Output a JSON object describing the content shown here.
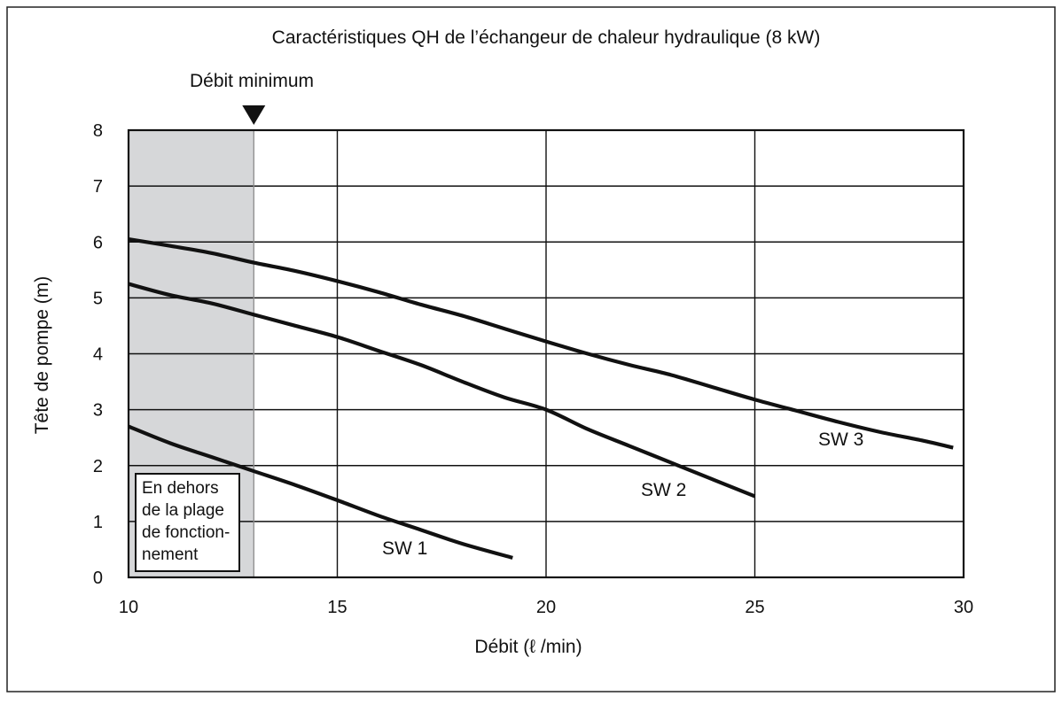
{
  "chart_data": {
    "type": "line",
    "title": "Caractéristiques QH de l’échangeur de chaleur hydraulique (8 kW)",
    "xlabel": "Débit (ℓ /min)",
    "ylabel": "Tête de pompe (m)",
    "xlim": [
      10,
      30
    ],
    "ylim": [
      0,
      8
    ],
    "x_ticks": [
      "10",
      "15",
      "20",
      "25",
      "30"
    ],
    "y_ticks": [
      "0",
      "1",
      "2",
      "3",
      "4",
      "5",
      "6",
      "7",
      "8"
    ],
    "grid": true,
    "min_flow": {
      "label": "Débit minimum",
      "x": 13
    },
    "out_of_range_box": {
      "x_range": [
        10,
        13
      ],
      "label_lines": [
        "En dehors",
        "de la plage",
        "de fonction-",
        "nement"
      ]
    },
    "series": [
      {
        "name": "SW 1",
        "points": [
          [
            10,
            2.7
          ],
          [
            11,
            2.4
          ],
          [
            12,
            2.15
          ],
          [
            13,
            1.9
          ],
          [
            14,
            1.65
          ],
          [
            15,
            1.38
          ],
          [
            16,
            1.1
          ],
          [
            17,
            0.85
          ],
          [
            18,
            0.6
          ],
          [
            19.2,
            0.35
          ]
        ]
      },
      {
        "name": "SW 2",
        "points": [
          [
            10,
            5.25
          ],
          [
            11,
            5.05
          ],
          [
            12,
            4.9
          ],
          [
            13,
            4.7
          ],
          [
            14,
            4.5
          ],
          [
            15,
            4.3
          ],
          [
            16,
            4.05
          ],
          [
            17,
            3.8
          ],
          [
            18,
            3.5
          ],
          [
            19,
            3.22
          ],
          [
            20,
            3.0
          ],
          [
            21,
            2.65
          ],
          [
            22,
            2.35
          ],
          [
            23,
            2.05
          ],
          [
            24,
            1.75
          ],
          [
            25,
            1.45
          ]
        ]
      },
      {
        "name": "SW 3",
        "points": [
          [
            10,
            6.05
          ],
          [
            11,
            5.93
          ],
          [
            12,
            5.8
          ],
          [
            13,
            5.63
          ],
          [
            14,
            5.48
          ],
          [
            15,
            5.3
          ],
          [
            16,
            5.1
          ],
          [
            17,
            4.88
          ],
          [
            18,
            4.68
          ],
          [
            19,
            4.45
          ],
          [
            20,
            4.22
          ],
          [
            21,
            4.0
          ],
          [
            22,
            3.8
          ],
          [
            23,
            3.62
          ],
          [
            24,
            3.4
          ],
          [
            25,
            3.18
          ],
          [
            26,
            2.98
          ],
          [
            27,
            2.78
          ],
          [
            28,
            2.6
          ],
          [
            29,
            2.45
          ],
          [
            29.75,
            2.32
          ]
        ]
      }
    ]
  }
}
